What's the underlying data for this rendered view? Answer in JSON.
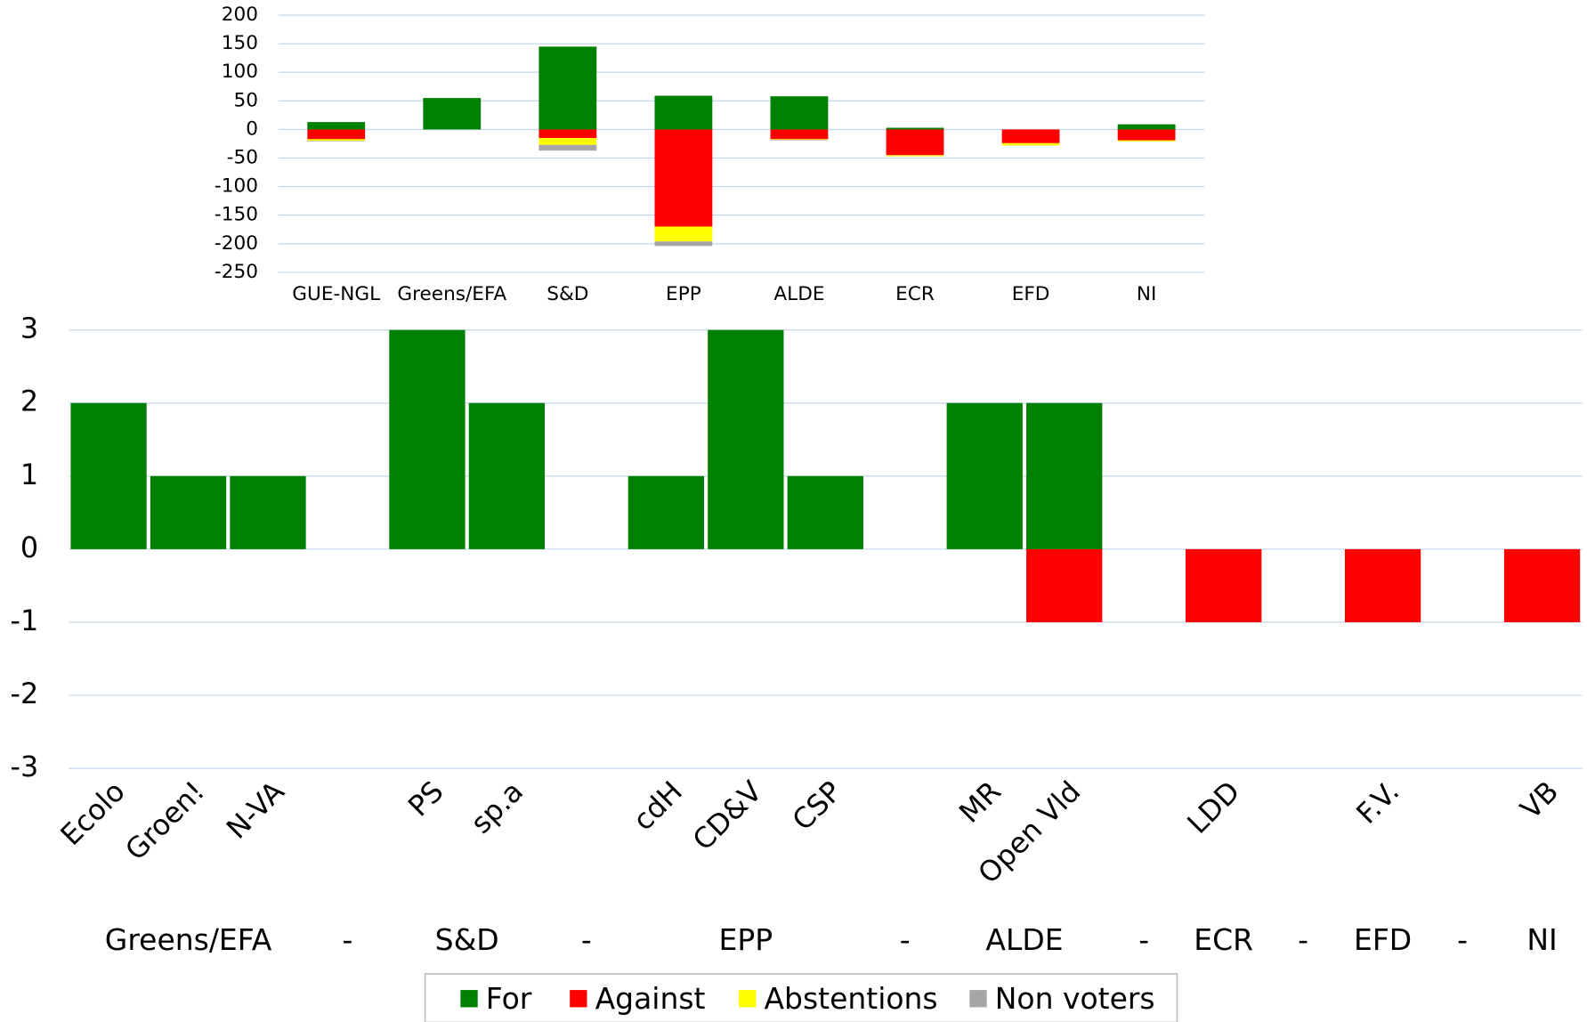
{
  "chart_data": [
    {
      "type": "bar",
      "stacked": true,
      "categories": [
        "GUE-NGL",
        "Greens/EFA",
        "S&D",
        "EPP",
        "ALDE",
        "ECR",
        "EFD",
        "NI"
      ],
      "series": [
        {
          "name": "For",
          "color": "#008000",
          "values": [
            13,
            55,
            145,
            59,
            58,
            3,
            0,
            9
          ]
        },
        {
          "name": "Against",
          "color": "#ff0000",
          "values": [
            -17,
            0,
            -15,
            -170,
            -17,
            -45,
            -24,
            -19
          ]
        },
        {
          "name": "Abstentions",
          "color": "#ffff00",
          "values": [
            -3,
            0,
            -12,
            -26,
            -1,
            -2,
            -4,
            -2
          ]
        },
        {
          "name": "Non voters",
          "color": "#a6a6a6",
          "values": [
            -1,
            0,
            -10,
            -8,
            -1,
            0,
            0,
            0
          ]
        }
      ],
      "ylim": [
        -250,
        200
      ],
      "yticks": [
        -250,
        -200,
        -150,
        -100,
        -50,
        0,
        50,
        100,
        150,
        200
      ],
      "grid": true
    },
    {
      "type": "bar",
      "stacked": true,
      "categories": [
        "Ecolo",
        "Groen!",
        "N-VA",
        null,
        "PS",
        "sp.a",
        null,
        "cdH",
        "CD&V",
        "CSP",
        null,
        "MR",
        "Open Vld",
        null,
        "LDD",
        null,
        "F.V.",
        null,
        "VB"
      ],
      "groups": [
        "Greens/EFA",
        "-",
        "S&D",
        "-",
        "EPP",
        "-",
        "ALDE",
        "-",
        "ECR",
        "-",
        "EFD",
        "-",
        "NI"
      ],
      "series": [
        {
          "color": "#008000",
          "values": [
            2,
            1,
            1,
            null,
            3,
            2,
            null,
            1,
            3,
            1,
            null,
            2,
            2,
            null,
            0,
            null,
            0,
            null,
            0
          ]
        },
        {
          "color": "#ff0000",
          "values": [
            0,
            0,
            0,
            null,
            0,
            0,
            null,
            0,
            0,
            0,
            null,
            0,
            -1,
            null,
            -1,
            null,
            -1,
            null,
            -1
          ]
        }
      ],
      "ylim": [
        -3,
        3
      ],
      "yticks": [
        -3,
        -2,
        -1,
        0,
        1,
        2,
        3
      ],
      "grid": true
    }
  ]
}
